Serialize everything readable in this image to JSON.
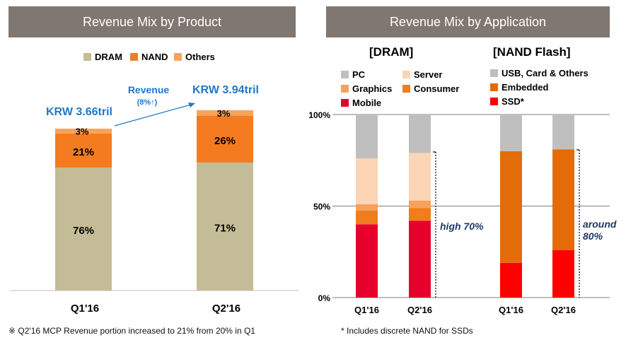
{
  "headers": {
    "left": "Revenue Mix by Product",
    "right": "Revenue Mix by Application"
  },
  "colors": {
    "dram": "#c4bc96",
    "nand": "#f47b20",
    "others": "#f9a35a",
    "pc": "#bfbfbf",
    "server": "#fbd5b5",
    "graphics": "#f6a15c",
    "consumer": "#f07d1e",
    "mobile": "#e8002d",
    "usb": "#bfbfbf",
    "embedded": "#e36c0a",
    "ssd": "#ff0000",
    "blue": "#1f78c8",
    "navy": "#1f3864"
  },
  "chart_data": [
    {
      "type": "bar",
      "title": "Revenue Mix by Product",
      "stacked": true,
      "categories": [
        "Q1'16",
        "Q2'16"
      ],
      "series": [
        {
          "name": "DRAM",
          "values": [
            76,
            71
          ],
          "labels": [
            "76%",
            "71%"
          ]
        },
        {
          "name": "NAND",
          "values": [
            21,
            26
          ],
          "labels": [
            "21%",
            "26%"
          ]
        },
        {
          "name": "Others",
          "values": [
            3,
            3
          ],
          "labels": [
            "3%",
            "3%"
          ]
        }
      ],
      "totals": [
        "KRW 3.66tril",
        "KRW 3.94tril"
      ],
      "annotation": {
        "line1": "Revenue",
        "line2": "(8%↑)"
      },
      "legend": [
        "DRAM",
        "NAND",
        "Others"
      ]
    },
    {
      "type": "bar",
      "title": "[DRAM]",
      "stacked": true,
      "categories": [
        "Q1'16",
        "Q2'16"
      ],
      "ylim": [
        0,
        100
      ],
      "yticks": [
        "0%",
        "50%",
        "100%"
      ],
      "series": [
        {
          "name": "Mobile",
          "values": [
            40,
            42
          ]
        },
        {
          "name": "Consumer",
          "values": [
            7.5,
            7
          ]
        },
        {
          "name": "Graphics",
          "values": [
            3.5,
            4
          ]
        },
        {
          "name": "Server",
          "values": [
            25,
            26
          ]
        },
        {
          "name": "PC",
          "values": [
            24,
            21
          ]
        }
      ],
      "legend": [
        "PC",
        "Server",
        "Graphics",
        "Consumer",
        "Mobile"
      ],
      "annotation": "high 70%"
    },
    {
      "type": "bar",
      "title": "[NAND Flash]",
      "stacked": true,
      "categories": [
        "Q1'16",
        "Q2'16"
      ],
      "ylim": [
        0,
        100
      ],
      "series": [
        {
          "name": "SSD*",
          "values": [
            19,
            26
          ]
        },
        {
          "name": "Embedded",
          "values": [
            61,
            55
          ]
        },
        {
          "name": "USB, Card & Others",
          "values": [
            20,
            19
          ]
        }
      ],
      "legend": [
        "USB, Card & Others",
        "Embedded",
        "SSD*"
      ],
      "annotation_line1": "around",
      "annotation_line2": "80%"
    }
  ],
  "footnotes": {
    "left": "※ Q2'16 MCP Revenue portion increased to 21% from 20% in Q1",
    "right": "* Includes discrete NAND for SSDs"
  }
}
